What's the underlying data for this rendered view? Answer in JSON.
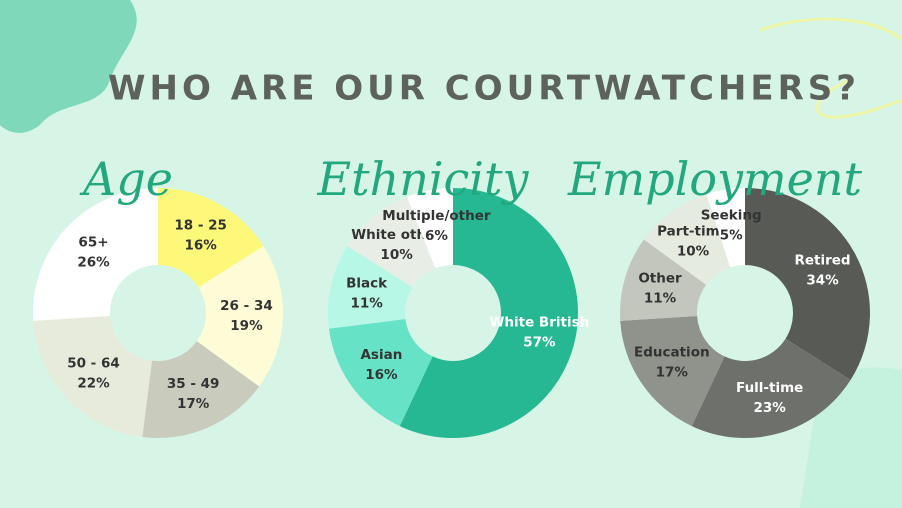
{
  "title": "WHO ARE OUR COURTWATCHERS?",
  "chart_data": [
    {
      "type": "donut",
      "title": "Age",
      "categories": [
        "18 - 25",
        "26 - 34",
        "35 - 49",
        "50 - 64",
        "65+"
      ],
      "values": [
        16,
        19,
        17,
        22,
        26
      ],
      "value_labels": [
        "16%",
        "19%",
        "17%",
        "22%",
        "26%"
      ],
      "colors": [
        "#fdf87a",
        "#fefcd6",
        "#c9cbbd",
        "#e6ebdc",
        "#ffffff"
      ]
    },
    {
      "type": "donut",
      "title": "Ethnicity",
      "categories": [
        "White British",
        "Asian",
        "Black",
        "White other",
        "Multiple/other"
      ],
      "values": [
        57,
        16,
        11,
        10,
        6
      ],
      "value_labels": [
        "57%",
        "16%",
        "11%",
        "10%",
        "6%"
      ],
      "colors": [
        "#25b893",
        "#66e3c6",
        "#b6f7e6",
        "#e8eee6",
        "#ffffff"
      ]
    },
    {
      "type": "donut",
      "title": "Employment",
      "categories": [
        "Retired",
        "Full-time",
        "Education",
        "Other",
        "Part-time",
        "Seeking"
      ],
      "values": [
        34,
        23,
        17,
        11,
        10,
        5
      ],
      "value_labels": [
        "34%",
        "23%",
        "17%",
        "11%",
        "10%",
        "5%"
      ],
      "colors": [
        "#575a55",
        "#6e716b",
        "#8f938b",
        "#c2c6bc",
        "#e6ebdf",
        "#ffffff"
      ]
    }
  ]
}
